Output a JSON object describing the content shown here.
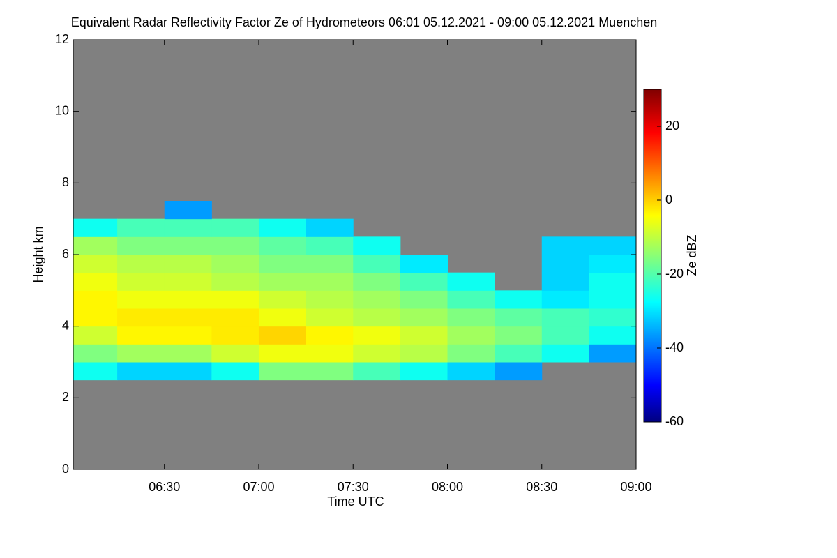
{
  "chart_data": {
    "type": "heatmap",
    "title": "Equivalent Radar Reflectivity Factor Ze of Hydrometeors   06:01 05.12.2021 - 09:00 05.12.2021 Muenchen",
    "x_label": "Time UTC",
    "y_label": "Height km",
    "colorbar_label": "Ze dBZ",
    "xlim": [
      6.0167,
      9.0
    ],
    "xticks": [
      {
        "value": 6.5,
        "label": "06:30"
      },
      {
        "value": 7.0,
        "label": "07:00"
      },
      {
        "value": 7.5,
        "label": "07:30"
      },
      {
        "value": 8.0,
        "label": "08:00"
      },
      {
        "value": 8.5,
        "label": "08:30"
      },
      {
        "value": 9.0,
        "label": "09:00"
      }
    ],
    "ylim": [
      0,
      12
    ],
    "yticks": [
      0,
      2,
      4,
      6,
      8,
      10,
      12
    ],
    "zlim": [
      -60,
      30
    ],
    "zticks": [
      -60,
      -40,
      -20,
      0,
      20
    ],
    "colormap": "jet",
    "background": "#808080",
    "x": [
      6.0,
      6.25,
      6.5,
      6.75,
      7.0,
      7.25,
      7.5,
      7.75,
      8.0,
      8.25,
      8.5,
      8.75,
      9.0
    ],
    "y": [
      2.5,
      3.0,
      3.5,
      4.0,
      4.5,
      5.0,
      5.5,
      6.0,
      6.5,
      7.0,
      7.5
    ],
    "z": [
      [
        -25,
        -30,
        -30,
        -25,
        -15,
        -15,
        -20,
        -25,
        -30,
        -35,
        null,
        null
      ],
      [
        -15,
        -12,
        -12,
        -8,
        -5,
        -5,
        -8,
        -10,
        -15,
        -20,
        -25,
        -35
      ],
      [
        -8,
        -3,
        -3,
        -2,
        0,
        -3,
        -5,
        -8,
        -12,
        -15,
        -20,
        -25
      ],
      [
        -3,
        -2,
        -2,
        -2,
        -5,
        -8,
        -10,
        -12,
        -15,
        -18,
        -20,
        -22
      ],
      [
        -3,
        -5,
        -5,
        -5,
        -8,
        -10,
        -12,
        -15,
        -20,
        -25,
        -28,
        -25
      ],
      [
        -5,
        -8,
        -8,
        -10,
        -12,
        -12,
        -15,
        -20,
        -25,
        null,
        -30,
        -25
      ],
      [
        -8,
        -10,
        -10,
        -12,
        -15,
        -15,
        -20,
        -28,
        null,
        null,
        -30,
        -28
      ],
      [
        -12,
        -15,
        -15,
        -15,
        -18,
        -20,
        -25,
        null,
        null,
        null,
        -30,
        -30
      ],
      [
        -25,
        -20,
        -20,
        -20,
        -25,
        -30,
        null,
        null,
        null,
        null,
        null,
        null
      ],
      [
        null,
        null,
        -35,
        null,
        null,
        null,
        null,
        null,
        null,
        null,
        null,
        null
      ]
    ]
  }
}
